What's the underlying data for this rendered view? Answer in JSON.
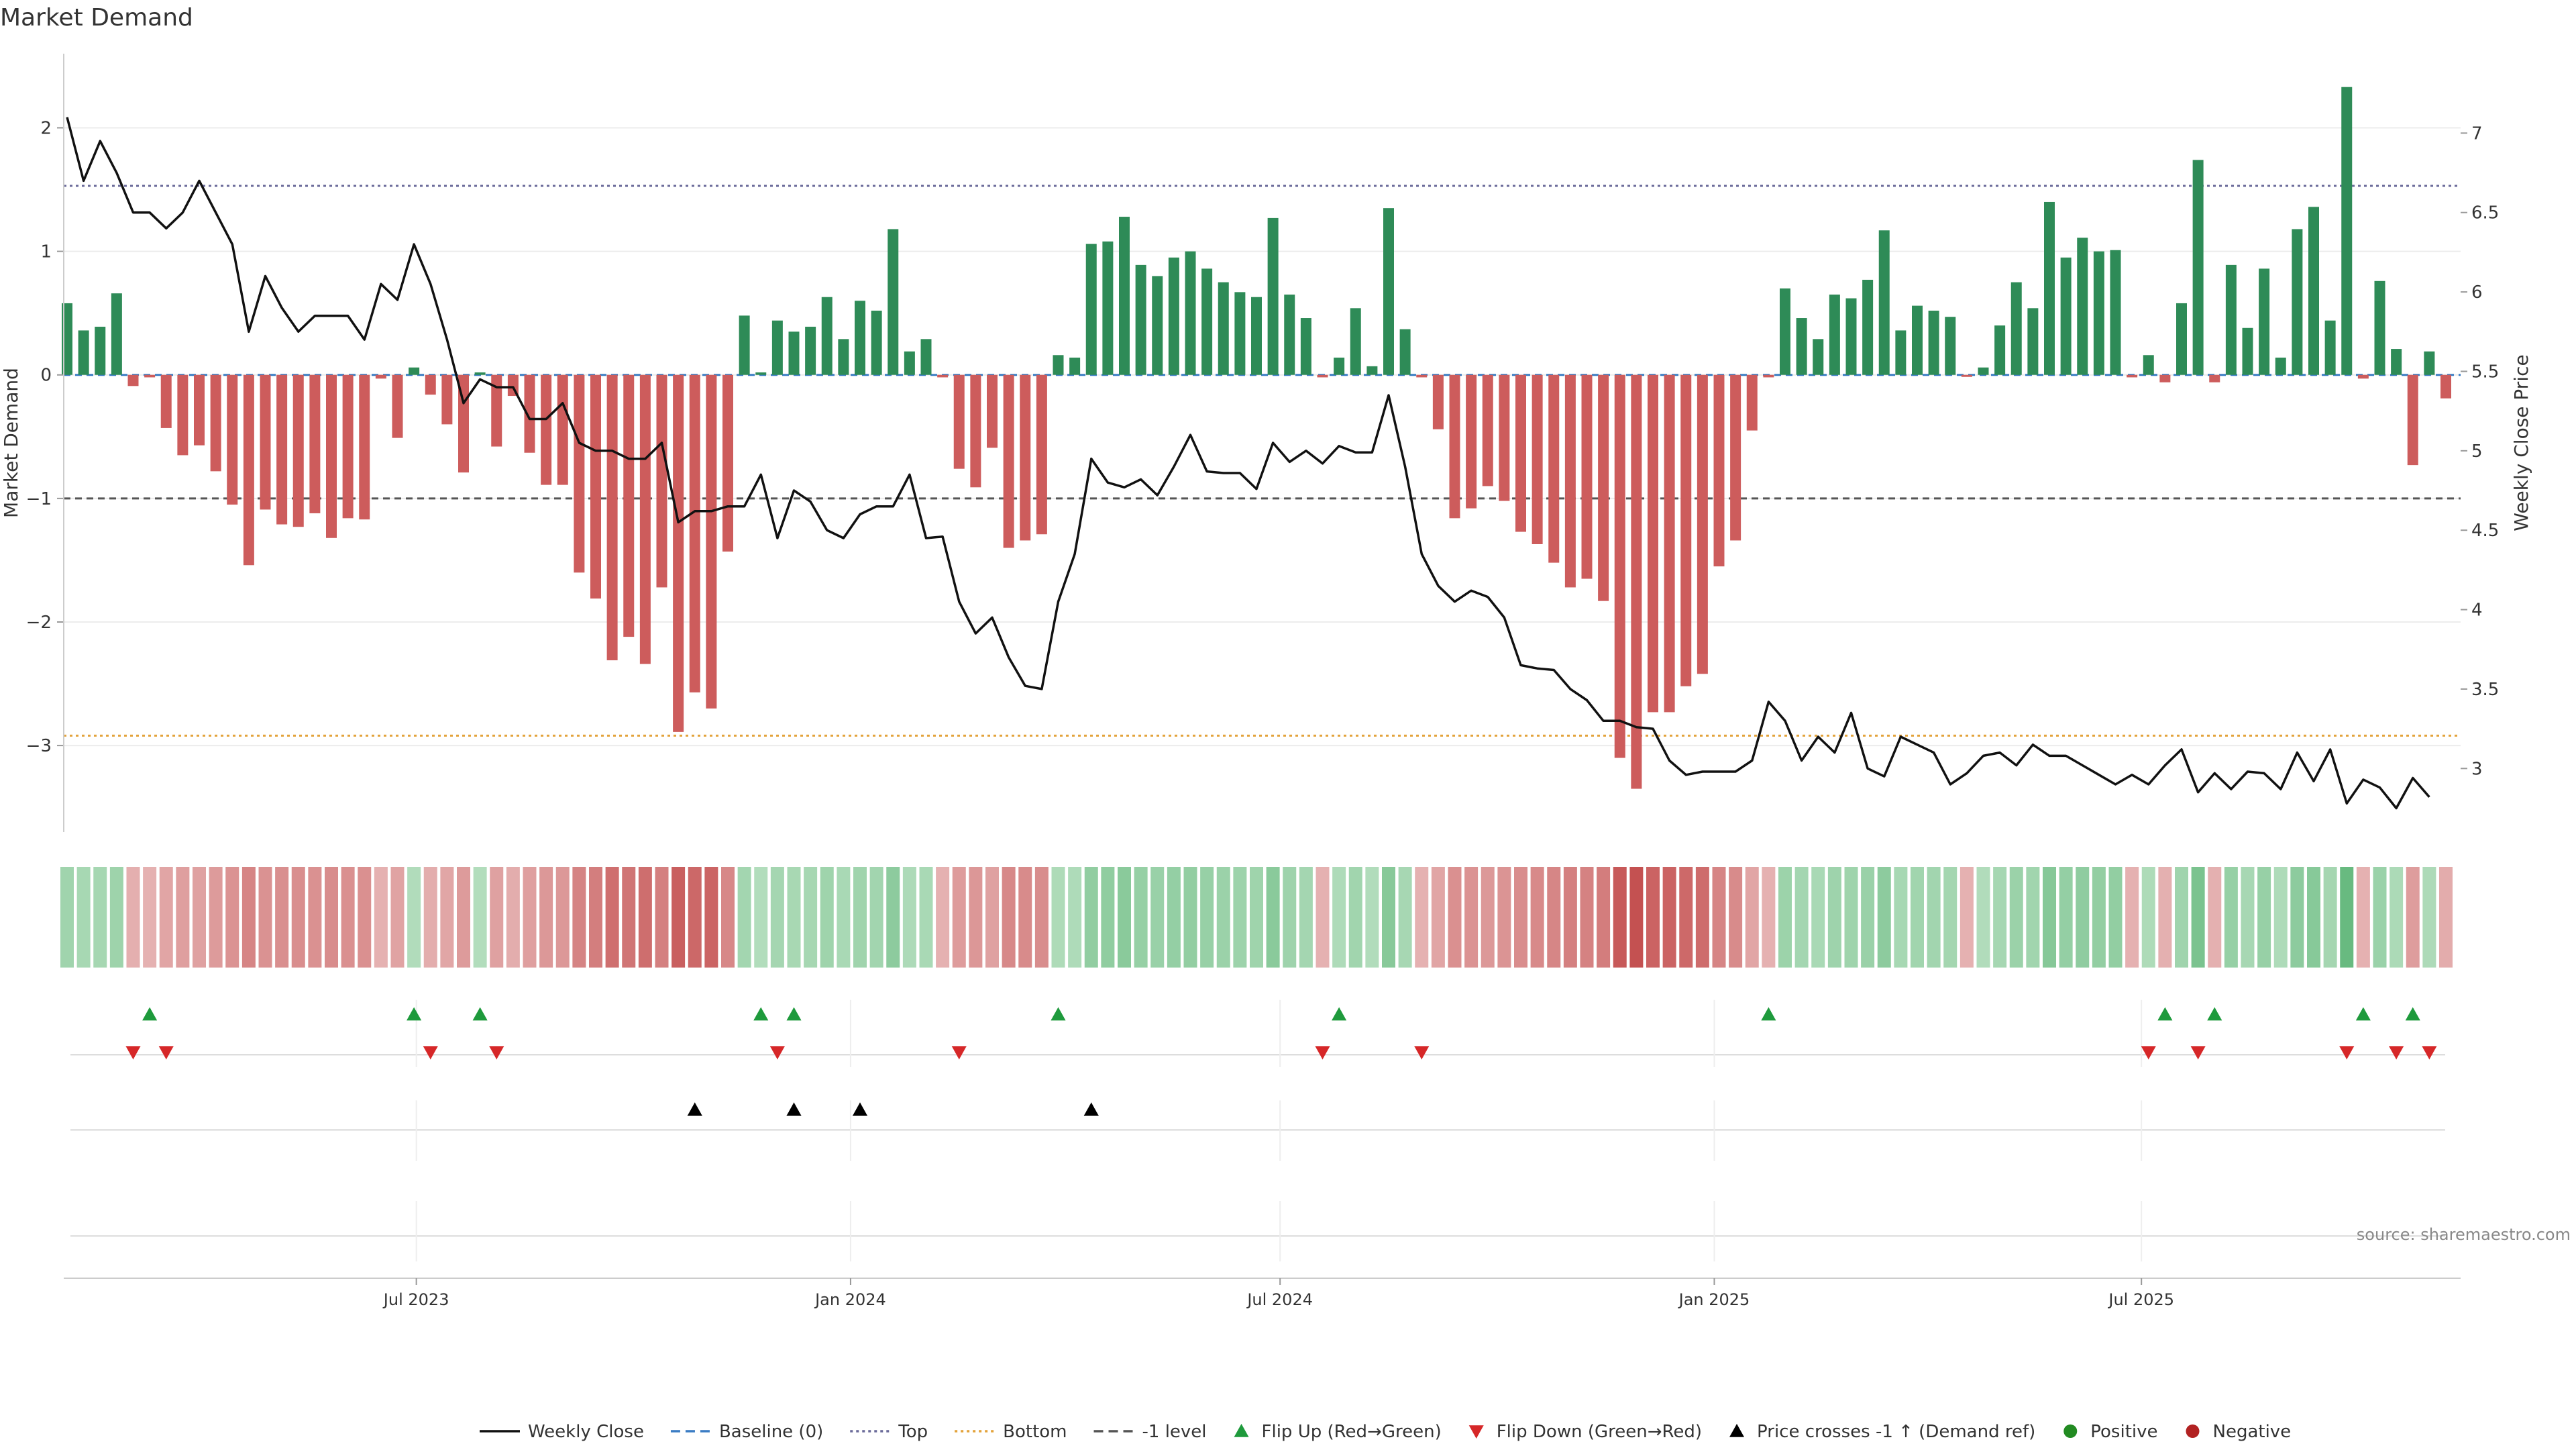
{
  "chart_data": {
    "type": "bar",
    "title": "Market Demand",
    "ylabel_left": "Market Demand",
    "ylabel_right": "Weekly Close Price",
    "left_axis": {
      "ylim": [
        -3.7,
        2.6
      ],
      "ticks": [
        2,
        1,
        0,
        -1,
        -2,
        -3
      ],
      "tick_labels": [
        "2",
        "1",
        "0",
        "−1",
        "−2",
        "−3"
      ]
    },
    "right_axis": {
      "ylim": [
        2.6,
        7.5
      ],
      "ticks": [
        7,
        6.5,
        6,
        5.5,
        5,
        4.5,
        4,
        3.5,
        3
      ],
      "tick_labels": [
        "7",
        "6.5",
        "6",
        "5.5",
        "5",
        "4.5",
        "4",
        "3.5",
        "3"
      ]
    },
    "x_dates": {
      "start": "2023-02-03",
      "step_days": 7,
      "count": 145
    },
    "x_ticks": [
      {
        "date": "2023-07-01",
        "label": "Jul 2023"
      },
      {
        "date": "2024-01-01",
        "label": "Jan 2024"
      },
      {
        "date": "2024-07-01",
        "label": "Jul 2024"
      },
      {
        "date": "2025-01-01",
        "label": "Jan 2025"
      },
      {
        "date": "2025-07-01",
        "label": "Jul 2025"
      }
    ],
    "reference_lines": [
      {
        "name": "Top",
        "axis": "left",
        "value": 1.53,
        "color": "#6b6b9a",
        "dash": "dotted"
      },
      {
        "name": "-1 level",
        "axis": "left",
        "value": -1.0,
        "color": "#555555",
        "dash": "dashed"
      },
      {
        "name": "Bottom",
        "axis": "left",
        "value": -2.92,
        "color": "#e3a33b",
        "dash": "dotted"
      },
      {
        "name": "Baseline (0)",
        "axis": "left",
        "value": 0,
        "color": "#3b7dc4",
        "dash": "dashed"
      }
    ],
    "series": [
      {
        "name": "Market Demand",
        "axis": "left",
        "positive_color": "#2e8b57",
        "negative_color": "#cd5c5c",
        "values": [
          0.58,
          0.36,
          0.39,
          0.66,
          -0.09,
          -0.02,
          -0.43,
          -0.65,
          -0.57,
          -0.78,
          -1.05,
          -1.54,
          -1.09,
          -1.21,
          -1.23,
          -1.12,
          -1.32,
          -1.16,
          -1.17,
          -0.03,
          -0.51,
          0.06,
          -0.16,
          -0.4,
          -0.79,
          0.02,
          -0.58,
          -0.17,
          -0.63,
          -0.89,
          -0.89,
          -1.6,
          -1.81,
          -2.31,
          -2.12,
          -2.34,
          -1.72,
          -2.89,
          -2.57,
          -2.7,
          -1.43,
          0.48,
          0.02,
          0.44,
          0.35,
          0.39,
          0.63,
          0.29,
          0.6,
          0.52,
          1.18,
          0.19,
          0.29,
          -0.02,
          -0.76,
          -0.91,
          -0.59,
          -1.4,
          -1.34,
          -1.29,
          0.16,
          0.14,
          1.06,
          1.08,
          1.28,
          0.89,
          0.8,
          0.95,
          1.0,
          0.86,
          0.75,
          0.67,
          0.63,
          1.27,
          0.65,
          0.46,
          -0.02,
          0.14,
          0.54,
          0.07,
          1.35,
          0.37,
          -0.02,
          -0.44,
          -1.16,
          -1.08,
          -0.9,
          -1.02,
          -1.27,
          -1.37,
          -1.52,
          -1.72,
          -1.65,
          -1.83,
          -3.1,
          -3.35,
          -2.73,
          -2.73,
          -2.52,
          -2.42,
          -1.55,
          -1.34,
          -0.45,
          -0.02,
          0.7,
          0.46,
          0.29,
          0.65,
          0.62,
          0.77,
          1.17,
          0.36,
          0.56,
          0.52,
          0.47,
          -0.01,
          0.06,
          0.4,
          0.75,
          0.54,
          1.4,
          0.95,
          1.11,
          1.0,
          1.01,
          -0.02,
          0.16,
          -0.06,
          0.58,
          1.74,
          -0.06,
          0.89,
          0.38,
          0.86,
          0.14,
          1.18,
          1.36,
          0.44,
          2.33,
          -0.03,
          0.76,
          0.21,
          -0.73,
          0.19,
          -0.19
        ]
      },
      {
        "name": "Weekly Close",
        "axis": "right",
        "color": "#111111",
        "values": [
          7.1,
          6.7,
          6.95,
          6.75,
          6.5,
          6.5,
          6.4,
          6.5,
          6.7,
          6.5,
          6.3,
          5.75,
          6.1,
          5.9,
          5.75,
          5.85,
          5.85,
          5.85,
          5.7,
          6.05,
          5.95,
          6.3,
          6.05,
          5.7,
          5.3,
          5.45,
          5.4,
          5.4,
          5.2,
          5.2,
          5.3,
          5.05,
          5.0,
          5.0,
          4.95,
          4.95,
          5.05,
          4.55,
          4.62,
          4.62,
          4.65,
          4.65,
          4.85,
          4.45,
          4.75,
          4.68,
          4.5,
          4.45,
          4.6,
          4.65,
          4.65,
          4.85,
          4.45,
          4.46,
          4.05,
          3.85,
          3.95,
          3.7,
          3.52,
          3.5,
          4.05,
          4.35,
          4.95,
          4.8,
          4.77,
          4.82,
          4.72,
          4.9,
          5.1,
          4.87,
          4.86,
          4.86,
          4.76,
          5.05,
          4.93,
          5.0,
          4.92,
          5.03,
          4.99,
          4.99,
          5.35,
          4.9,
          4.35,
          4.15,
          4.05,
          4.12,
          4.08,
          3.95,
          3.65,
          3.63,
          3.62,
          3.5,
          3.43,
          3.3,
          3.3,
          3.26,
          3.25,
          3.05,
          2.96,
          2.98,
          2.98,
          2.98,
          3.05,
          3.42,
          3.3,
          3.05,
          3.2,
          3.1,
          3.35,
          3.0,
          2.95,
          3.2,
          3.15,
          3.1,
          2.9,
          2.97,
          3.08,
          3.1,
          3.02,
          3.15,
          3.08,
          3.08,
          3.02,
          2.96,
          2.9,
          2.96,
          2.9,
          3.02,
          3.12,
          2.85,
          2.97,
          2.87,
          2.98,
          2.97,
          2.87,
          3.1,
          2.92,
          3.12,
          2.78,
          2.93,
          2.88,
          2.75,
          2.94,
          2.82
        ]
      }
    ],
    "strip": {
      "description_colors": "green shades for positive demand, red shades for negative demand"
    },
    "events": {
      "flip_up": [
        5,
        21,
        25,
        42,
        44,
        60,
        77,
        103,
        127,
        130,
        139,
        142
      ],
      "flip_down": [
        4,
        6,
        22,
        26,
        43,
        54,
        76,
        82,
        126,
        129,
        138,
        141,
        143
      ],
      "price_cross": [
        38,
        44,
        48,
        62
      ]
    },
    "legend": {
      "position": "bottom-center",
      "items": [
        {
          "label": "Weekly Close",
          "kind": "line",
          "color": "#111111"
        },
        {
          "label": "Baseline (0)",
          "kind": "dashed",
          "color": "#3b7dc4"
        },
        {
          "label": "Top",
          "kind": "dotted",
          "color": "#6b6b9a"
        },
        {
          "label": "Bottom",
          "kind": "dotted",
          "color": "#e3a33b"
        },
        {
          "label": "-1 level",
          "kind": "dashed",
          "color": "#555555"
        },
        {
          "label": "Flip Up (Red→Green)",
          "kind": "tri-up",
          "color": "#1e9a3c"
        },
        {
          "label": "Flip Down (Green→Red)",
          "kind": "tri-down",
          "color": "#d62728"
        },
        {
          "label": "Price crosses -1 ↑ (Demand ref)",
          "kind": "tri-up",
          "color": "#000000"
        },
        {
          "label": "Positive",
          "kind": "dot",
          "color": "#228b22"
        },
        {
          "label": "Negative",
          "kind": "dot",
          "color": "#b22222"
        }
      ]
    },
    "source": "source: sharemaestro.com"
  }
}
